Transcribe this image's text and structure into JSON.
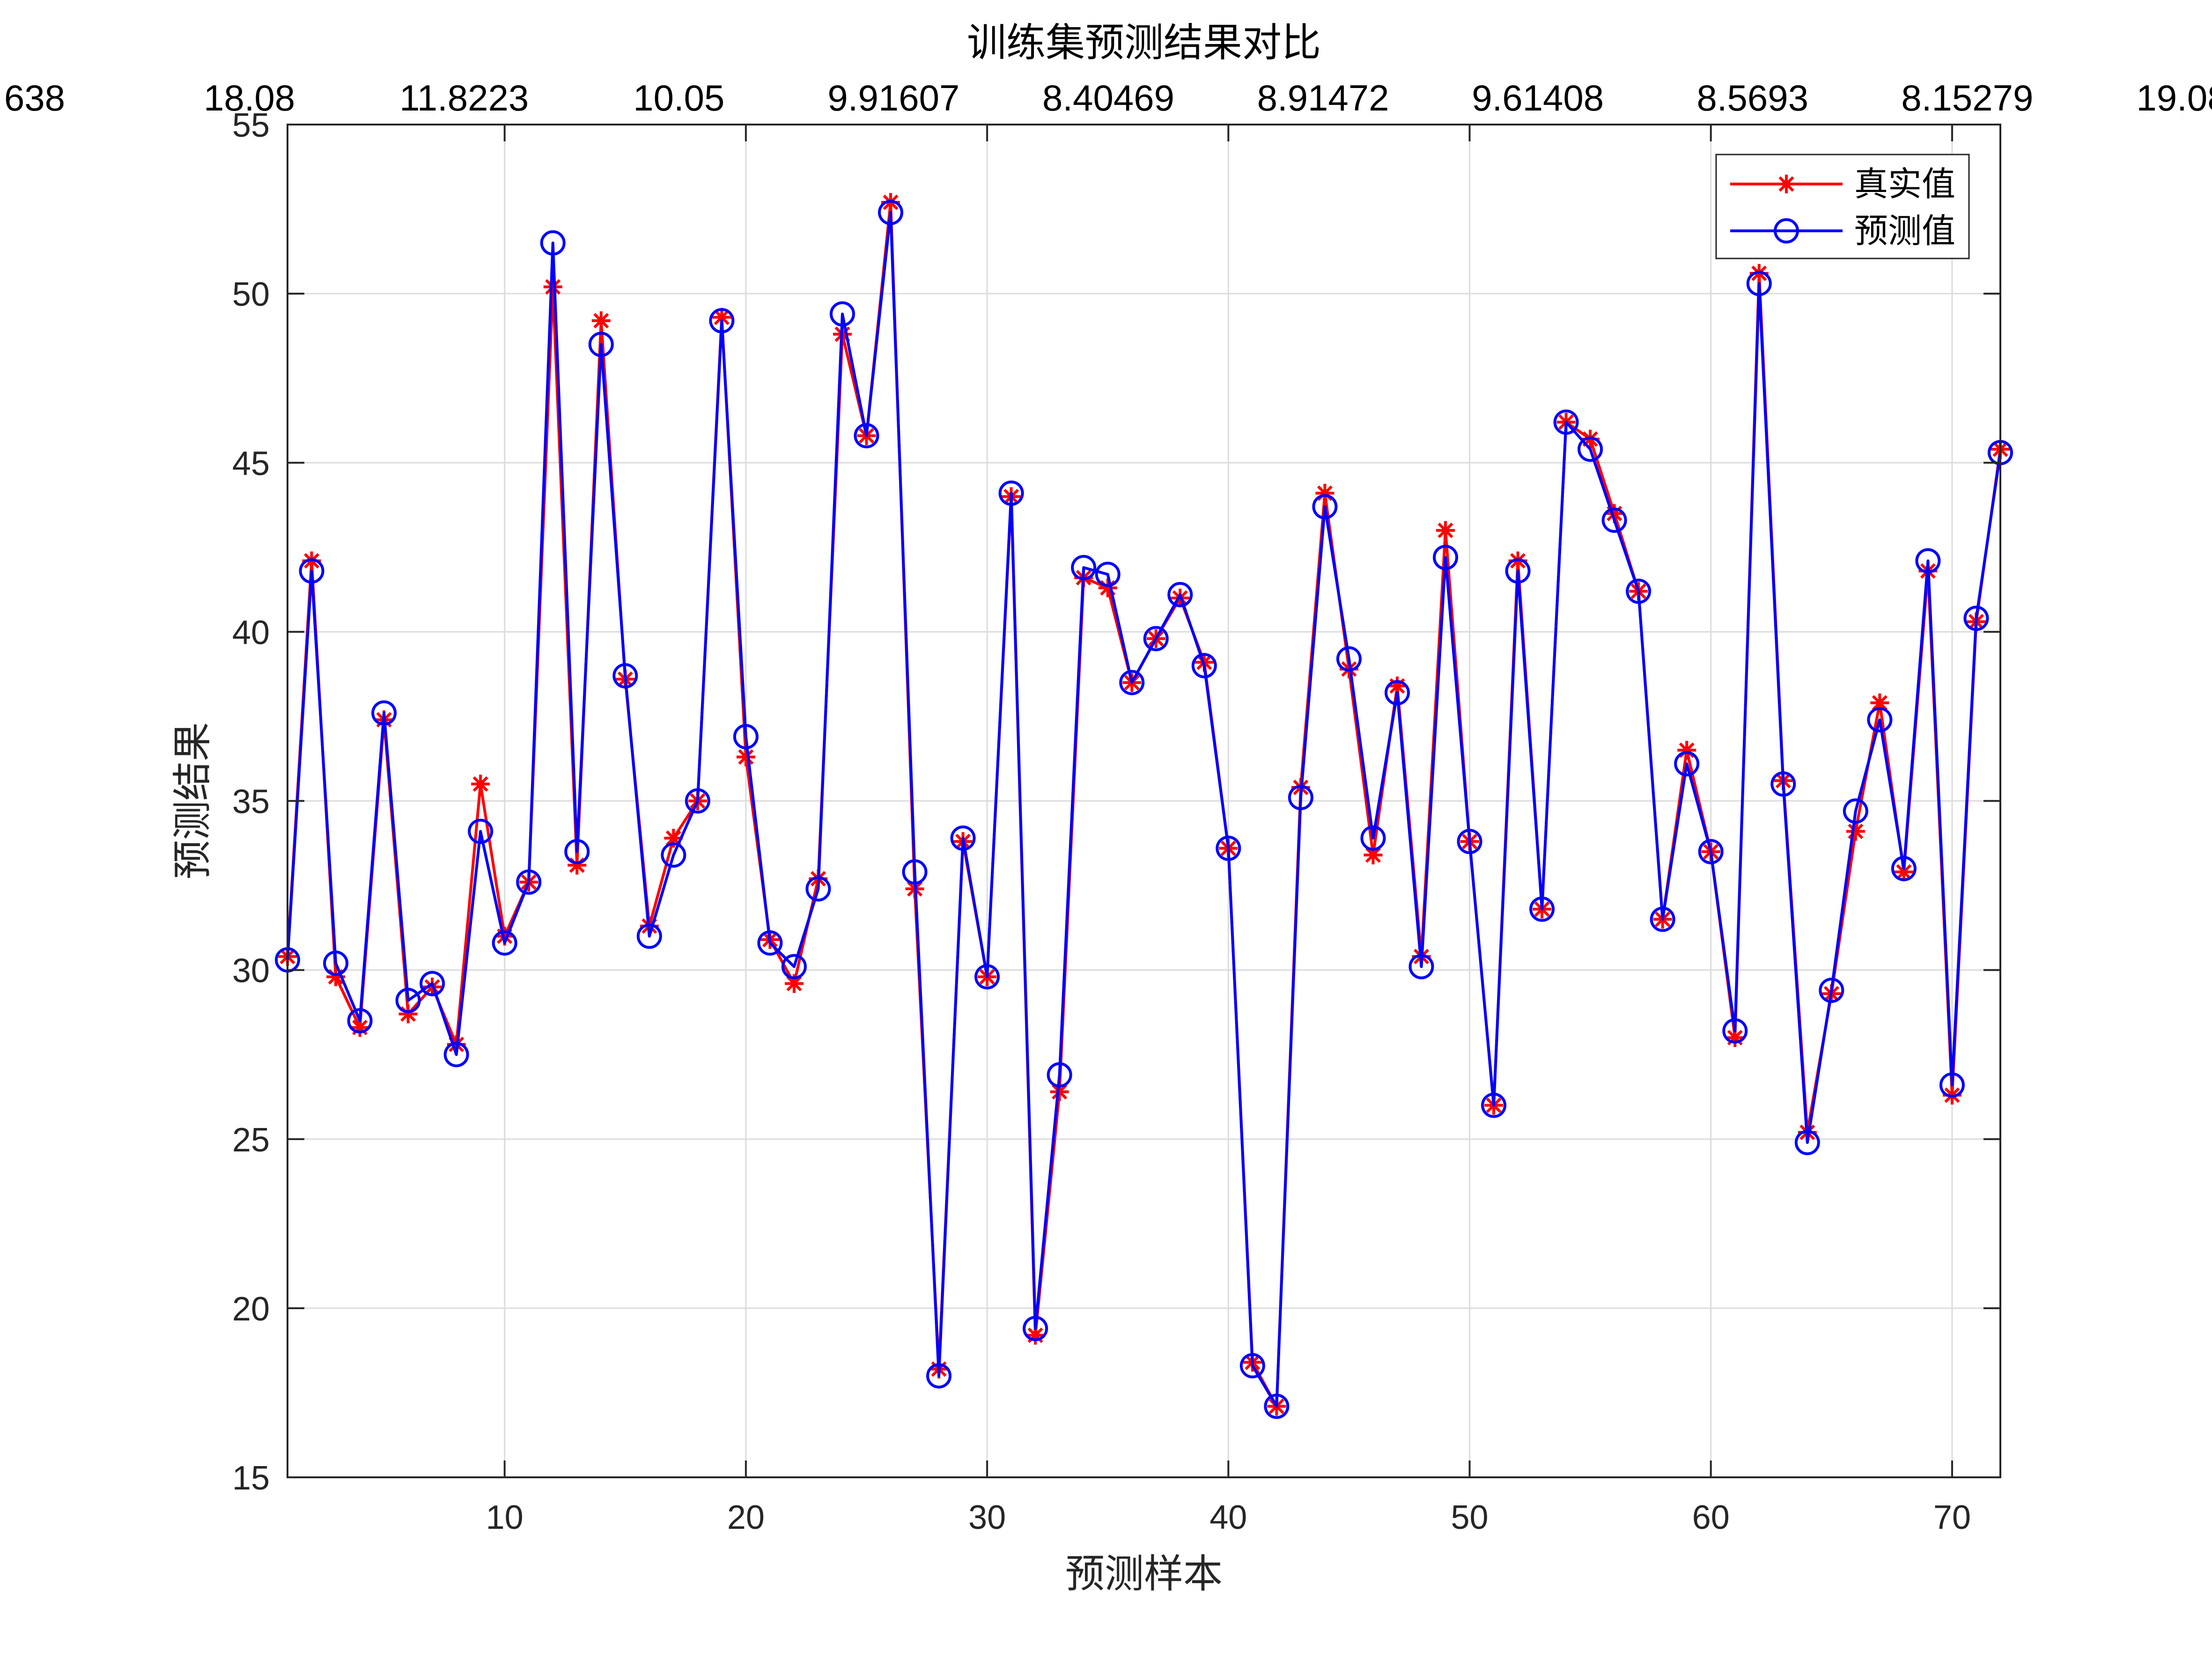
{
  "chart_data": {
    "type": "line",
    "title": "训练集预测结果对比",
    "xlabel": "预测样本",
    "ylabel": "预测结果",
    "xlim": [
      1,
      72
    ],
    "ylim": [
      15,
      55
    ],
    "xticks": [
      10,
      20,
      30,
      40,
      50,
      60,
      70
    ],
    "yticks": [
      15,
      20,
      25,
      30,
      35,
      40,
      45,
      50,
      55
    ],
    "top_tick_labels": [
      "638",
      "18.08",
      "11.8223",
      "10.05",
      "9.91607",
      "8.40469",
      "8.91472",
      "9.61408",
      "8.5693",
      "8.15279",
      "19.08"
    ],
    "grid": true,
    "legend_position": "top-right",
    "series": [
      {
        "name": "真实值",
        "color": "#ff0000",
        "marker": "asterisk",
        "values": [
          30.4,
          42.1,
          29.8,
          28.3,
          37.4,
          28.7,
          29.5,
          27.8,
          35.5,
          31.0,
          32.6,
          50.2,
          33.1,
          49.2,
          38.6,
          31.3,
          33.9,
          35.0,
          49.3,
          36.3,
          30.9,
          29.6,
          32.7,
          48.8,
          45.8,
          52.7,
          32.4,
          18.2,
          33.8,
          29.8,
          44.0,
          19.2,
          26.4,
          41.6,
          41.3,
          38.5,
          39.8,
          41.0,
          39.1,
          33.6,
          18.4,
          17.1,
          35.4,
          44.1,
          38.9,
          33.4,
          38.4,
          30.4,
          43.0,
          33.8,
          26.0,
          42.1,
          31.8,
          46.2,
          45.7,
          43.5,
          41.2,
          31.5,
          36.5,
          33.5,
          28.0,
          50.6,
          35.6,
          25.2,
          29.3,
          34.1,
          37.9,
          32.9,
          41.8,
          26.3,
          40.3,
          45.4
        ]
      },
      {
        "name": "预测值",
        "color": "#0000ff",
        "marker": "circle",
        "values": [
          30.3,
          41.8,
          30.2,
          28.5,
          37.6,
          29.1,
          29.6,
          27.5,
          34.1,
          30.8,
          32.6,
          51.5,
          33.5,
          48.5,
          38.7,
          31.0,
          33.4,
          35.0,
          49.2,
          36.9,
          30.8,
          30.1,
          32.4,
          49.4,
          45.8,
          52.4,
          32.9,
          18.0,
          33.9,
          29.8,
          44.1,
          19.4,
          26.9,
          41.9,
          41.7,
          38.5,
          39.8,
          41.1,
          39.0,
          33.6,
          18.3,
          17.1,
          35.1,
          43.7,
          39.2,
          33.9,
          38.2,
          30.1,
          42.2,
          33.8,
          26.0,
          41.8,
          31.8,
          46.2,
          45.4,
          43.3,
          41.2,
          31.5,
          36.1,
          33.5,
          28.2,
          50.3,
          35.5,
          24.9,
          29.4,
          34.7,
          37.4,
          33.0,
          42.1,
          26.6,
          40.4,
          45.3
        ]
      }
    ]
  }
}
